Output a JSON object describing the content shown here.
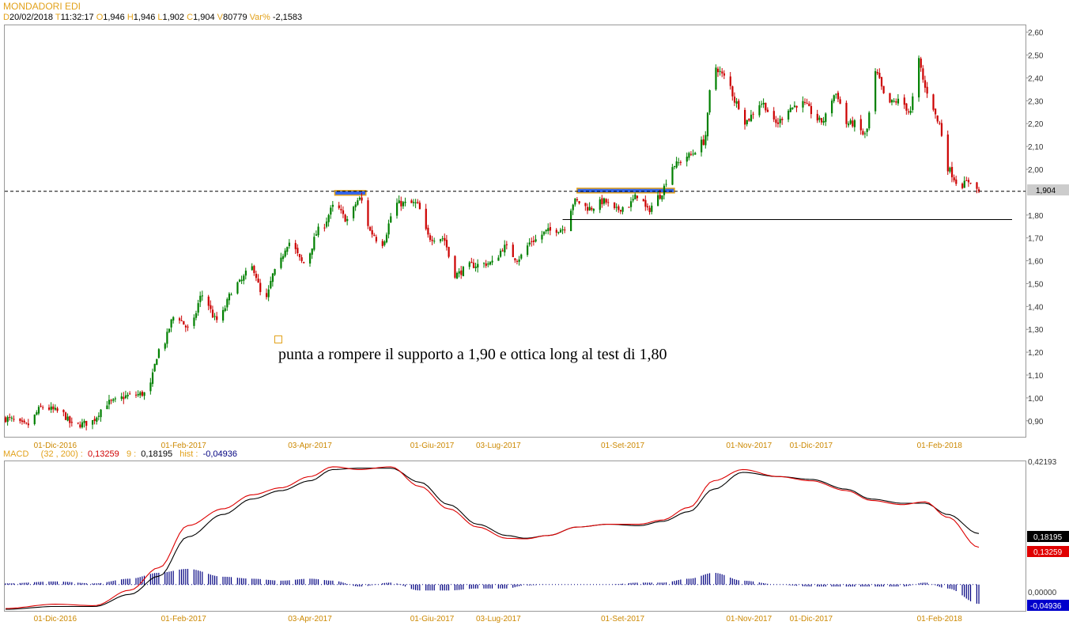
{
  "header": {
    "title": "MONDADORI EDI",
    "date_key": "D",
    "date": "20/02/2018",
    "time_key": "T",
    "time": "11:32:17",
    "open_key": "O",
    "open": "1,946",
    "high_key": "H",
    "high": "1,946",
    "low_key": "L",
    "low": "1,902",
    "close_key": "C",
    "close": "1,904",
    "volume_key": "V",
    "volume": "80779",
    "var_key": "Var%",
    "var": "-2,1583"
  },
  "macd_header": {
    "label": "MACD",
    "params": "(32 , 200) :",
    "macd_value": "0,13259",
    "signal_label": "9 :",
    "signal_value": "0,18195",
    "hist_label": "hist :",
    "hist_value": "-0,04936"
  },
  "annotation": {
    "text": "punta a rompere il supporto a 1,90 e ottica long al test di 1,80"
  },
  "price_axis": {
    "ticks": [
      "2,60",
      "2,50",
      "2,40",
      "2,30",
      "2,20",
      "2,10",
      "2,00",
      "1,80",
      "1,70",
      "1,60",
      "1,50",
      "1,40",
      "1,30",
      "1,20",
      "1,10",
      "1,00",
      "0,90"
    ],
    "current_label": "1,904"
  },
  "macd_axis": {
    "top_label": "0,42193",
    "zero_label": "0,00000",
    "signal_label": "0,18195",
    "macd_label": "0,13259",
    "hist_label": "-0,04936"
  },
  "date_labels": [
    "01-Dic-2016",
    "01-Feb-2017",
    "03-Apr-2017",
    "01-Giu-2017",
    "03-Lug-2017",
    "01-Set-2017",
    "01-Nov-2017",
    "01-Dic-2017",
    "01-Feb-2018"
  ],
  "colors": {
    "up": "#008000",
    "down": "#cc0000",
    "accent": "#e2a11a",
    "macd": "#dd0000",
    "signal": "#000000",
    "hist": "#000080",
    "zone_fill": "#3366ee"
  },
  "chart_data": [
    {
      "type": "candlestick",
      "title": "MONDADORI EDI",
      "ylim": [
        0.83,
        2.63
      ],
      "x_range": [
        "2016-11-07",
        "2018-02-20"
      ],
      "anchors": [
        [
          "2016-11-07",
          0.91
        ],
        [
          "2016-11-17",
          0.88
        ],
        [
          "2016-11-25",
          0.96
        ],
        [
          "2016-12-03",
          0.94
        ],
        [
          "2016-12-10",
          0.88
        ],
        [
          "2016-12-17",
          0.89
        ],
        [
          "2016-12-27",
          0.98
        ],
        [
          "2017-01-06",
          1.01
        ],
        [
          "2017-01-14",
          1.02
        ],
        [
          "2017-01-21",
          1.22
        ],
        [
          "2017-01-28",
          1.36
        ],
        [
          "2017-02-04",
          1.3
        ],
        [
          "2017-02-10",
          1.45
        ],
        [
          "2017-02-17",
          1.34
        ],
        [
          "2017-02-27",
          1.5
        ],
        [
          "2017-03-06",
          1.57
        ],
        [
          "2017-03-12",
          1.42
        ],
        [
          "2017-03-17",
          1.55
        ],
        [
          "2017-03-24",
          1.68
        ],
        [
          "2017-03-31",
          1.59
        ],
        [
          "2017-04-08",
          1.74
        ],
        [
          "2017-04-15",
          1.84
        ],
        [
          "2017-04-21",
          1.78
        ],
        [
          "2017-04-27",
          1.87
        ],
        [
          "2017-05-03",
          1.72
        ],
        [
          "2017-05-07",
          1.67
        ],
        [
          "2017-05-15",
          1.85
        ],
        [
          "2017-05-24",
          1.85
        ],
        [
          "2017-05-31",
          1.7
        ],
        [
          "2017-06-06",
          1.7
        ],
        [
          "2017-06-12",
          1.54
        ],
        [
          "2017-06-20",
          1.58
        ],
        [
          "2017-06-30",
          1.59
        ],
        [
          "2017-07-06",
          1.66
        ],
        [
          "2017-07-12",
          1.61
        ],
        [
          "2017-07-20",
          1.69
        ],
        [
          "2017-07-27",
          1.73
        ],
        [
          "2017-08-03",
          1.74
        ],
        [
          "2017-08-09",
          1.86
        ],
        [
          "2017-08-16",
          1.83
        ],
        [
          "2017-08-23",
          1.86
        ],
        [
          "2017-08-28",
          1.82
        ],
        [
          "2017-09-03",
          1.84
        ],
        [
          "2017-09-09",
          1.89
        ],
        [
          "2017-09-13",
          1.82
        ],
        [
          "2017-09-18",
          1.88
        ],
        [
          "2017-09-26",
          2.02
        ],
        [
          "2017-10-03",
          2.06
        ],
        [
          "2017-10-10",
          2.12
        ],
        [
          "2017-10-15",
          2.45
        ],
        [
          "2017-10-21",
          2.4
        ],
        [
          "2017-10-26",
          2.29
        ],
        [
          "2017-10-30",
          2.21
        ],
        [
          "2017-11-07",
          2.29
        ],
        [
          "2017-11-14",
          2.2
        ],
        [
          "2017-11-21",
          2.27
        ],
        [
          "2017-11-26",
          2.29
        ],
        [
          "2017-12-06",
          2.21
        ],
        [
          "2017-12-13",
          2.33
        ],
        [
          "2017-12-18",
          2.2
        ],
        [
          "2017-12-22",
          2.2
        ],
        [
          "2017-12-27",
          2.15
        ],
        [
          "2018-01-01",
          2.42
        ],
        [
          "2018-01-07",
          2.29
        ],
        [
          "2018-01-13",
          2.3
        ],
        [
          "2018-01-18",
          2.25
        ],
        [
          "2018-01-21",
          2.49
        ],
        [
          "2018-01-26",
          2.34
        ],
        [
          "2018-02-01",
          2.2
        ],
        [
          "2018-02-04",
          2.01
        ],
        [
          "2018-02-11",
          1.93
        ],
        [
          "2018-02-16",
          1.95
        ],
        [
          "2018-02-20",
          1.904
        ]
      ],
      "support_line": 1.904,
      "lower_support_line": 1.78,
      "resistance_zones": [
        {
          "from": "2017-04-15",
          "to": "2017-04-30",
          "low": 1.887,
          "high": 1.907
        },
        {
          "from": "2017-08-10",
          "to": "2017-09-26",
          "low": 1.897,
          "high": 1.917
        }
      ],
      "last_close": 1.904
    },
    {
      "type": "line",
      "title": "MACD (32 , 200)",
      "ylim": [
        -0.0936,
        0.4394
      ],
      "series": [
        {
          "name": "MACD",
          "values": [
            [
              "2016-11-07",
              -0.085
            ],
            [
              "2016-12-01",
              -0.07
            ],
            [
              "2016-12-20",
              -0.075
            ],
            [
              "2017-01-06",
              -0.02
            ],
            [
              "2017-01-20",
              0.06
            ],
            [
              "2017-02-03",
              0.21
            ],
            [
              "2017-02-20",
              0.27
            ],
            [
              "2017-03-06",
              0.32
            ],
            [
              "2017-03-20",
              0.345
            ],
            [
              "2017-04-03",
              0.385
            ],
            [
              "2017-04-14",
              0.42
            ],
            [
              "2017-04-27",
              0.41
            ],
            [
              "2017-05-12",
              0.42
            ],
            [
              "2017-05-26",
              0.35
            ],
            [
              "2017-06-09",
              0.27
            ],
            [
              "2017-06-23",
              0.205
            ],
            [
              "2017-07-07",
              0.165
            ],
            [
              "2017-07-16",
              0.163
            ],
            [
              "2017-07-27",
              0.175
            ],
            [
              "2017-08-10",
              0.205
            ],
            [
              "2017-08-25",
              0.215
            ],
            [
              "2017-09-09",
              0.215
            ],
            [
              "2017-09-20",
              0.23
            ],
            [
              "2017-10-03",
              0.275
            ],
            [
              "2017-10-15",
              0.37
            ],
            [
              "2017-10-29",
              0.41
            ],
            [
              "2017-11-15",
              0.385
            ],
            [
              "2017-12-01",
              0.37
            ],
            [
              "2017-12-18",
              0.335
            ],
            [
              "2017-12-30",
              0.3
            ],
            [
              "2018-01-14",
              0.285
            ],
            [
              "2018-01-25",
              0.295
            ],
            [
              "2018-02-05",
              0.24
            ],
            [
              "2018-02-20",
              0.133
            ]
          ]
        },
        {
          "name": "Signal",
          "values": [
            [
              "2016-11-07",
              -0.088
            ],
            [
              "2016-12-01",
              -0.078
            ],
            [
              "2016-12-20",
              -0.078
            ],
            [
              "2017-01-06",
              -0.035
            ],
            [
              "2017-01-20",
              0.03
            ],
            [
              "2017-02-03",
              0.17
            ],
            [
              "2017-02-20",
              0.25
            ],
            [
              "2017-03-06",
              0.305
            ],
            [
              "2017-03-20",
              0.335
            ],
            [
              "2017-04-03",
              0.37
            ],
            [
              "2017-04-14",
              0.41
            ],
            [
              "2017-04-27",
              0.415
            ],
            [
              "2017-05-12",
              0.415
            ],
            [
              "2017-05-26",
              0.365
            ],
            [
              "2017-06-09",
              0.285
            ],
            [
              "2017-06-23",
              0.215
            ],
            [
              "2017-07-07",
              0.175
            ],
            [
              "2017-07-16",
              0.165
            ],
            [
              "2017-07-27",
              0.175
            ],
            [
              "2017-08-10",
              0.205
            ],
            [
              "2017-08-25",
              0.215
            ],
            [
              "2017-09-09",
              0.21
            ],
            [
              "2017-09-20",
              0.225
            ],
            [
              "2017-10-03",
              0.26
            ],
            [
              "2017-10-15",
              0.34
            ],
            [
              "2017-10-29",
              0.4
            ],
            [
              "2017-11-15",
              0.385
            ],
            [
              "2017-12-01",
              0.375
            ],
            [
              "2017-12-18",
              0.34
            ],
            [
              "2017-12-30",
              0.305
            ],
            [
              "2018-01-14",
              0.29
            ],
            [
              "2018-01-25",
              0.29
            ],
            [
              "2018-02-05",
              0.25
            ],
            [
              "2018-02-20",
              0.182
            ]
          ]
        }
      ],
      "hist_last": -0.04936
    }
  ]
}
